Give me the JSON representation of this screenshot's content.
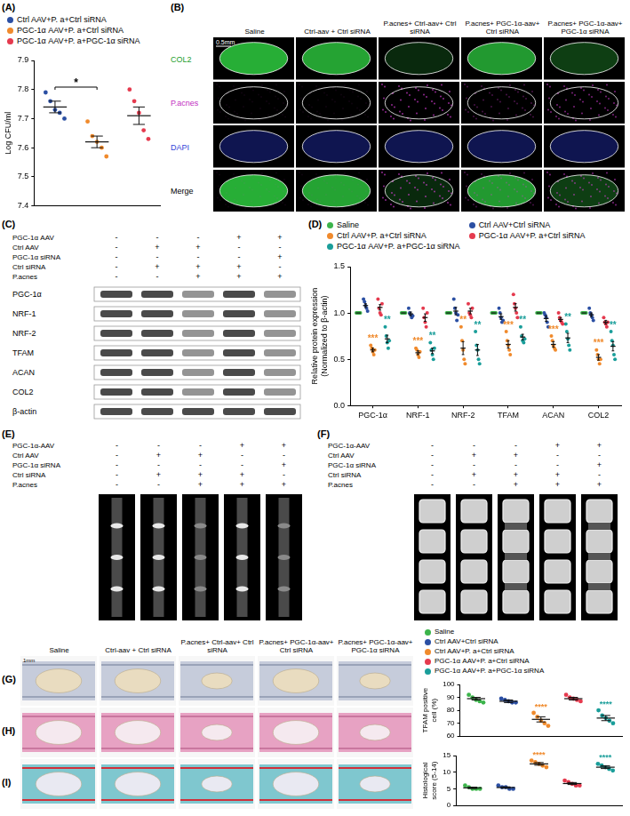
{
  "chart_data": [
    {
      "panel": "(A)",
      "type": "dot",
      "y_label": "Log CFU/ml",
      "ylim": [
        7.4,
        7.9
      ],
      "yticks": [
        7.4,
        7.5,
        7.6,
        7.7,
        7.8,
        7.9
      ],
      "grid": false,
      "legend": "top",
      "tick_labels": "y",
      "series": [
        {
          "name": "Ctrl AAV+P. a+Ctrl siRNA",
          "color": "#2b4fa3",
          "values": [
            7.79,
            7.76,
            7.73,
            7.72,
            7.7
          ],
          "mean": 7.74,
          "sem": 0.02
        },
        {
          "name": "PGC-1α AAV+P. a+Ctrl siRNA",
          "color": "#f08a2c",
          "values": [
            7.69,
            7.64,
            7.62,
            7.6,
            7.57
          ],
          "mean": 7.62,
          "sem": 0.02
        },
        {
          "name": "PGC-1α AAV+P. a+PGC-1α siRNA",
          "color": "#e53a4e",
          "values": [
            7.8,
            7.76,
            7.72,
            7.66,
            7.63
          ],
          "mean": 7.71,
          "sem": 0.03
        }
      ],
      "comparisons": [
        {
          "between": [
            "Ctrl AAV+P. a+Ctrl siRNA",
            "PGC-1α AAV+P. a+Ctrl siRNA"
          ],
          "text": "*"
        }
      ]
    },
    {
      "panel": "(D)",
      "type": "dot",
      "y_label": "Relative protein expression (Normalized to β-actin)",
      "ylim": [
        0,
        1.5
      ],
      "yticks": [
        {
          "value": 0,
          "label": "0.0"
        },
        0.5,
        {
          "value": 1,
          "label": "1.0"
        },
        1.5
      ],
      "grid": false,
      "legend": "top",
      "categories": [
        "PGC-1α",
        "NRF-1",
        "NRF-2",
        "TFAM",
        "ACAN",
        "COL2"
      ],
      "series": [
        {
          "name": "Saline",
          "color": "#3cb44b",
          "values": [
            [
              1,
              1,
              1,
              1,
              1
            ],
            [
              1,
              1,
              1,
              1,
              1
            ],
            [
              1,
              1,
              1,
              1,
              1
            ],
            [
              1,
              1,
              1,
              1,
              1
            ],
            [
              1,
              1,
              1,
              1,
              1
            ],
            [
              1,
              1,
              1,
              1,
              1
            ]
          ],
          "mean": [
            1,
            1,
            1,
            1,
            1,
            1
          ],
          "sem": [
            0,
            0,
            0,
            0,
            0,
            0
          ],
          "significance": [
            null,
            null,
            null,
            null,
            null,
            null
          ]
        },
        {
          "name": "Ctrl AAV+Ctrl siRNA",
          "color": "#2b4fa3",
          "values": [
            [
              1.15,
              1.12,
              1.08,
              1.05,
              1.02
            ],
            [
              1.05,
              1.0,
              0.98,
              0.95,
              0.97
            ],
            [
              1.15,
              1.05,
              1.0,
              0.92,
              0.98
            ],
            [
              1.05,
              1.0,
              0.95,
              0.9,
              0.92
            ],
            [
              1.0,
              0.98,
              0.95,
              0.9,
              0.85
            ],
            [
              1.05,
              1.0,
              0.98,
              0.95,
              0.92
            ]
          ],
          "mean": [
            1.08,
            0.99,
            1.02,
            0.96,
            0.94,
            0.98
          ],
          "sem": [
            0.02,
            0.02,
            0.04,
            0.03,
            0.03,
            0.02
          ],
          "significance": [
            null,
            null,
            null,
            null,
            null,
            null
          ]
        },
        {
          "name": "Ctrl AAV+P. a+Ctrl siRNA",
          "color": "#f08a2c",
          "values": [
            [
              0.65,
              0.62,
              0.58,
              0.55,
              0.6
            ],
            [
              0.62,
              0.6,
              0.55,
              0.52,
              0.58
            ],
            [
              0.85,
              0.7,
              0.6,
              0.5,
              0.45
            ],
            [
              0.8,
              0.7,
              0.65,
              0.6,
              0.55
            ],
            [
              0.75,
              0.7,
              0.65,
              0.62,
              0.6
            ],
            [
              0.6,
              0.55,
              0.5,
              0.45,
              0.5
            ]
          ],
          "mean": [
            0.6,
            0.57,
            0.62,
            0.66,
            0.66,
            0.52
          ],
          "sem": [
            0.02,
            0.02,
            0.07,
            0.04,
            0.03,
            0.03
          ],
          "significance": [
            "***",
            "***",
            "**",
            "***",
            "***",
            "***"
          ]
        },
        {
          "name": "PGC-1α AAV+P. a+Ctrl siRNA",
          "color": "#e53a4e",
          "values": [
            [
              1.15,
              1.05,
              1.0,
              0.98,
              1.1
            ],
            [
              1.05,
              0.95,
              0.9,
              0.85,
              1.0
            ],
            [
              1.1,
              1.0,
              0.98,
              0.95,
              1.05
            ],
            [
              1.2,
              1.1,
              1.05,
              1.0,
              0.95
            ],
            [
              1.0,
              0.95,
              0.92,
              0.9,
              0.88
            ],
            [
              0.95,
              0.9,
              0.88,
              0.85,
              0.9
            ]
          ],
          "mean": [
            1.06,
            0.95,
            1.02,
            1.06,
            0.93,
            0.9
          ],
          "sem": [
            0.03,
            0.04,
            0.03,
            0.04,
            0.02,
            0.02
          ],
          "significance": [
            null,
            null,
            null,
            null,
            null,
            null
          ]
        },
        {
          "name": "PGC-1α AAV+P. a+PGC-1α siRNA",
          "color": "#1a9e9a",
          "values": [
            [
              0.85,
              0.75,
              0.68,
              0.62,
              0.7
            ],
            [
              0.68,
              0.6,
              0.55,
              0.5,
              0.62
            ],
            [
              0.8,
              0.65,
              0.6,
              0.5,
              0.45
            ],
            [
              0.85,
              0.75,
              0.7,
              0.68,
              0.72
            ],
            [
              0.88,
              0.8,
              0.72,
              0.65,
              0.6
            ],
            [
              0.8,
              0.7,
              0.65,
              0.55,
              0.5
            ]
          ],
          "mean": [
            0.72,
            0.59,
            0.6,
            0.74,
            0.73,
            0.64
          ],
          "sem": [
            0.04,
            0.03,
            0.06,
            0.03,
            0.05,
            0.05
          ],
          "significance": [
            "**",
            "**",
            "**",
            "**",
            "**",
            "**"
          ]
        }
      ]
    },
    {
      "type": "dot",
      "y_label": "TFAM positive cell (%)",
      "ylim": [
        60,
        100
      ],
      "yticks": [
        60,
        70,
        80,
        90,
        100
      ],
      "grid": false,
      "legend": "top",
      "tick_labels": "y",
      "series": [
        {
          "name": "Saline",
          "color": "#3cb44b",
          "values": [
            92,
            90,
            88,
            87,
            86
          ],
          "mean": 89,
          "sem": 1
        },
        {
          "name": "Ctrl AAV+Ctrl siRNA",
          "color": "#2b4fa3",
          "values": [
            89,
            88,
            87,
            86,
            86
          ],
          "mean": 87,
          "sem": 1
        },
        {
          "name": "Ctrl AAV+P. a+Ctrl siRNA",
          "color": "#f08a2c",
          "values": [
            78,
            75,
            72,
            70,
            68
          ],
          "mean": 73,
          "sem": 2,
          "significance": "****"
        },
        {
          "name": "PGC-1α AAV+P. a+Ctrl siRNA",
          "color": "#e53a4e",
          "values": [
            92,
            90,
            89,
            88,
            87
          ],
          "mean": 89,
          "sem": 1
        },
        {
          "name": "PGC-1α AAV+P. a+PGC-1α siRNA",
          "color": "#1a9e9a",
          "values": [
            80,
            76,
            74,
            72,
            70
          ],
          "mean": 74,
          "sem": 2,
          "significance": "****"
        }
      ]
    },
    {
      "type": "dot",
      "y_label": "Histological score (5-14)",
      "ylim": [
        0,
        15
      ],
      "yticks": [
        0,
        5,
        10,
        15
      ],
      "grid": false,
      "tick_labels": "y",
      "series": [
        {
          "color": "#3cb44b",
          "values": [
            6,
            5.5,
            5,
            5,
            5
          ],
          "mean": 5.3,
          "sem": 0.2
        },
        {
          "color": "#2b4fa3",
          "values": [
            6,
            5.5,
            5.5,
            5,
            5
          ],
          "mean": 5.4,
          "sem": 0.2
        },
        {
          "color": "#f08a2c",
          "values": [
            13.5,
            13,
            12.5,
            12,
            11.5
          ],
          "mean": 12.5,
          "sem": 0.4,
          "significance": "****"
        },
        {
          "color": "#e53a4e",
          "values": [
            7.5,
            7,
            6.5,
            6,
            6
          ],
          "mean": 6.6,
          "sem": 0.3
        },
        {
          "color": "#1a9e9a",
          "values": [
            12.5,
            12,
            11.5,
            11,
            10.5
          ],
          "mean": 11.5,
          "sem": 0.4,
          "significance": "****"
        }
      ]
    }
  ],
  "panel_B": {
    "label": "(B)",
    "columns": [
      "Saline",
      "Ctrl-aav + Ctrl siRNA",
      "P.acnes+ Ctrl-aav+ Ctrl siRNA",
      "P.acnes+ PGC-1α-aav+ Ctrl siRNA",
      "P.acnes+ PGC-1α-aav+ PGC-1α siRNA"
    ],
    "rows": [
      "COL2",
      "P.acnes",
      "DAPI",
      "Merge"
    ],
    "scale_bar": "0.5mm"
  },
  "panel_C": {
    "label": "(C)",
    "conditions": [
      {
        "name": "PGC-1α AAV",
        "lanes": [
          "-",
          "-",
          "-",
          "+",
          "+"
        ]
      },
      {
        "name": "Ctrl AAV",
        "lanes": [
          "-",
          "+",
          "+",
          "-",
          "-"
        ]
      },
      {
        "name": "PGC-1α siRNA",
        "lanes": [
          "-",
          "-",
          "-",
          "-",
          "+"
        ]
      },
      {
        "name": "Ctrl siRNA",
        "lanes": [
          "-",
          "+",
          "+",
          "+",
          "-"
        ]
      },
      {
        "name": "P.acnes",
        "lanes": [
          "-",
          "-",
          "+",
          "+",
          "+"
        ]
      }
    ],
    "proteins": [
      "PGC-1α",
      "NRF-1",
      "NRF-2",
      "TFAM",
      "ACAN",
      "COL2",
      "β-actin"
    ]
  },
  "panel_E": {
    "label": "(E)",
    "conditions": [
      {
        "name": "PGC-1α-AAV",
        "lanes": [
          "-",
          "-",
          "-",
          "+",
          "+"
        ]
      },
      {
        "name": "Ctrl AAV",
        "lanes": [
          "-",
          "+",
          "+",
          "-",
          "-"
        ]
      },
      {
        "name": "PGC-1α siRNA",
        "lanes": [
          "-",
          "-",
          "-",
          "-",
          "+"
        ]
      },
      {
        "name": "Ctrl siRNA",
        "lanes": [
          "-",
          "+",
          "+",
          "+",
          "-"
        ]
      },
      {
        "name": "P.acnes",
        "lanes": [
          "-",
          "-",
          "+",
          "+",
          "+"
        ]
      }
    ]
  },
  "panel_F": {
    "label": "(F)",
    "conditions": [
      {
        "name": "PGC-1α-AAV",
        "lanes": [
          "-",
          "-",
          "-",
          "+",
          "+"
        ]
      },
      {
        "name": "Ctrl AAV",
        "lanes": [
          "-",
          "+",
          "+",
          "-",
          "-"
        ]
      },
      {
        "name": "PGC-1α siRNA",
        "lanes": [
          "-",
          "-",
          "-",
          "-",
          "+"
        ]
      },
      {
        "name": "Ctrl siRNA",
        "lanes": [
          "-",
          "+",
          "+",
          "+",
          "-"
        ]
      },
      {
        "name": "P.acnes",
        "lanes": [
          "-",
          "-",
          "+",
          "+",
          "+"
        ]
      }
    ]
  },
  "panels_GHI": {
    "labels": [
      "(G)",
      "(H)",
      "(I)"
    ],
    "columns": [
      "Saline",
      "Ctrl-aav + Ctrl siRNA",
      "P.acnes+ Ctrl-aav+ Ctrl siRNA",
      "P.acnes+ PGC-1α-aav+ Ctrl siRNA",
      "P.acnes+ PGC-1α-aav+ PGC-1α siRNA"
    ],
    "scale_bar": "1mm"
  }
}
